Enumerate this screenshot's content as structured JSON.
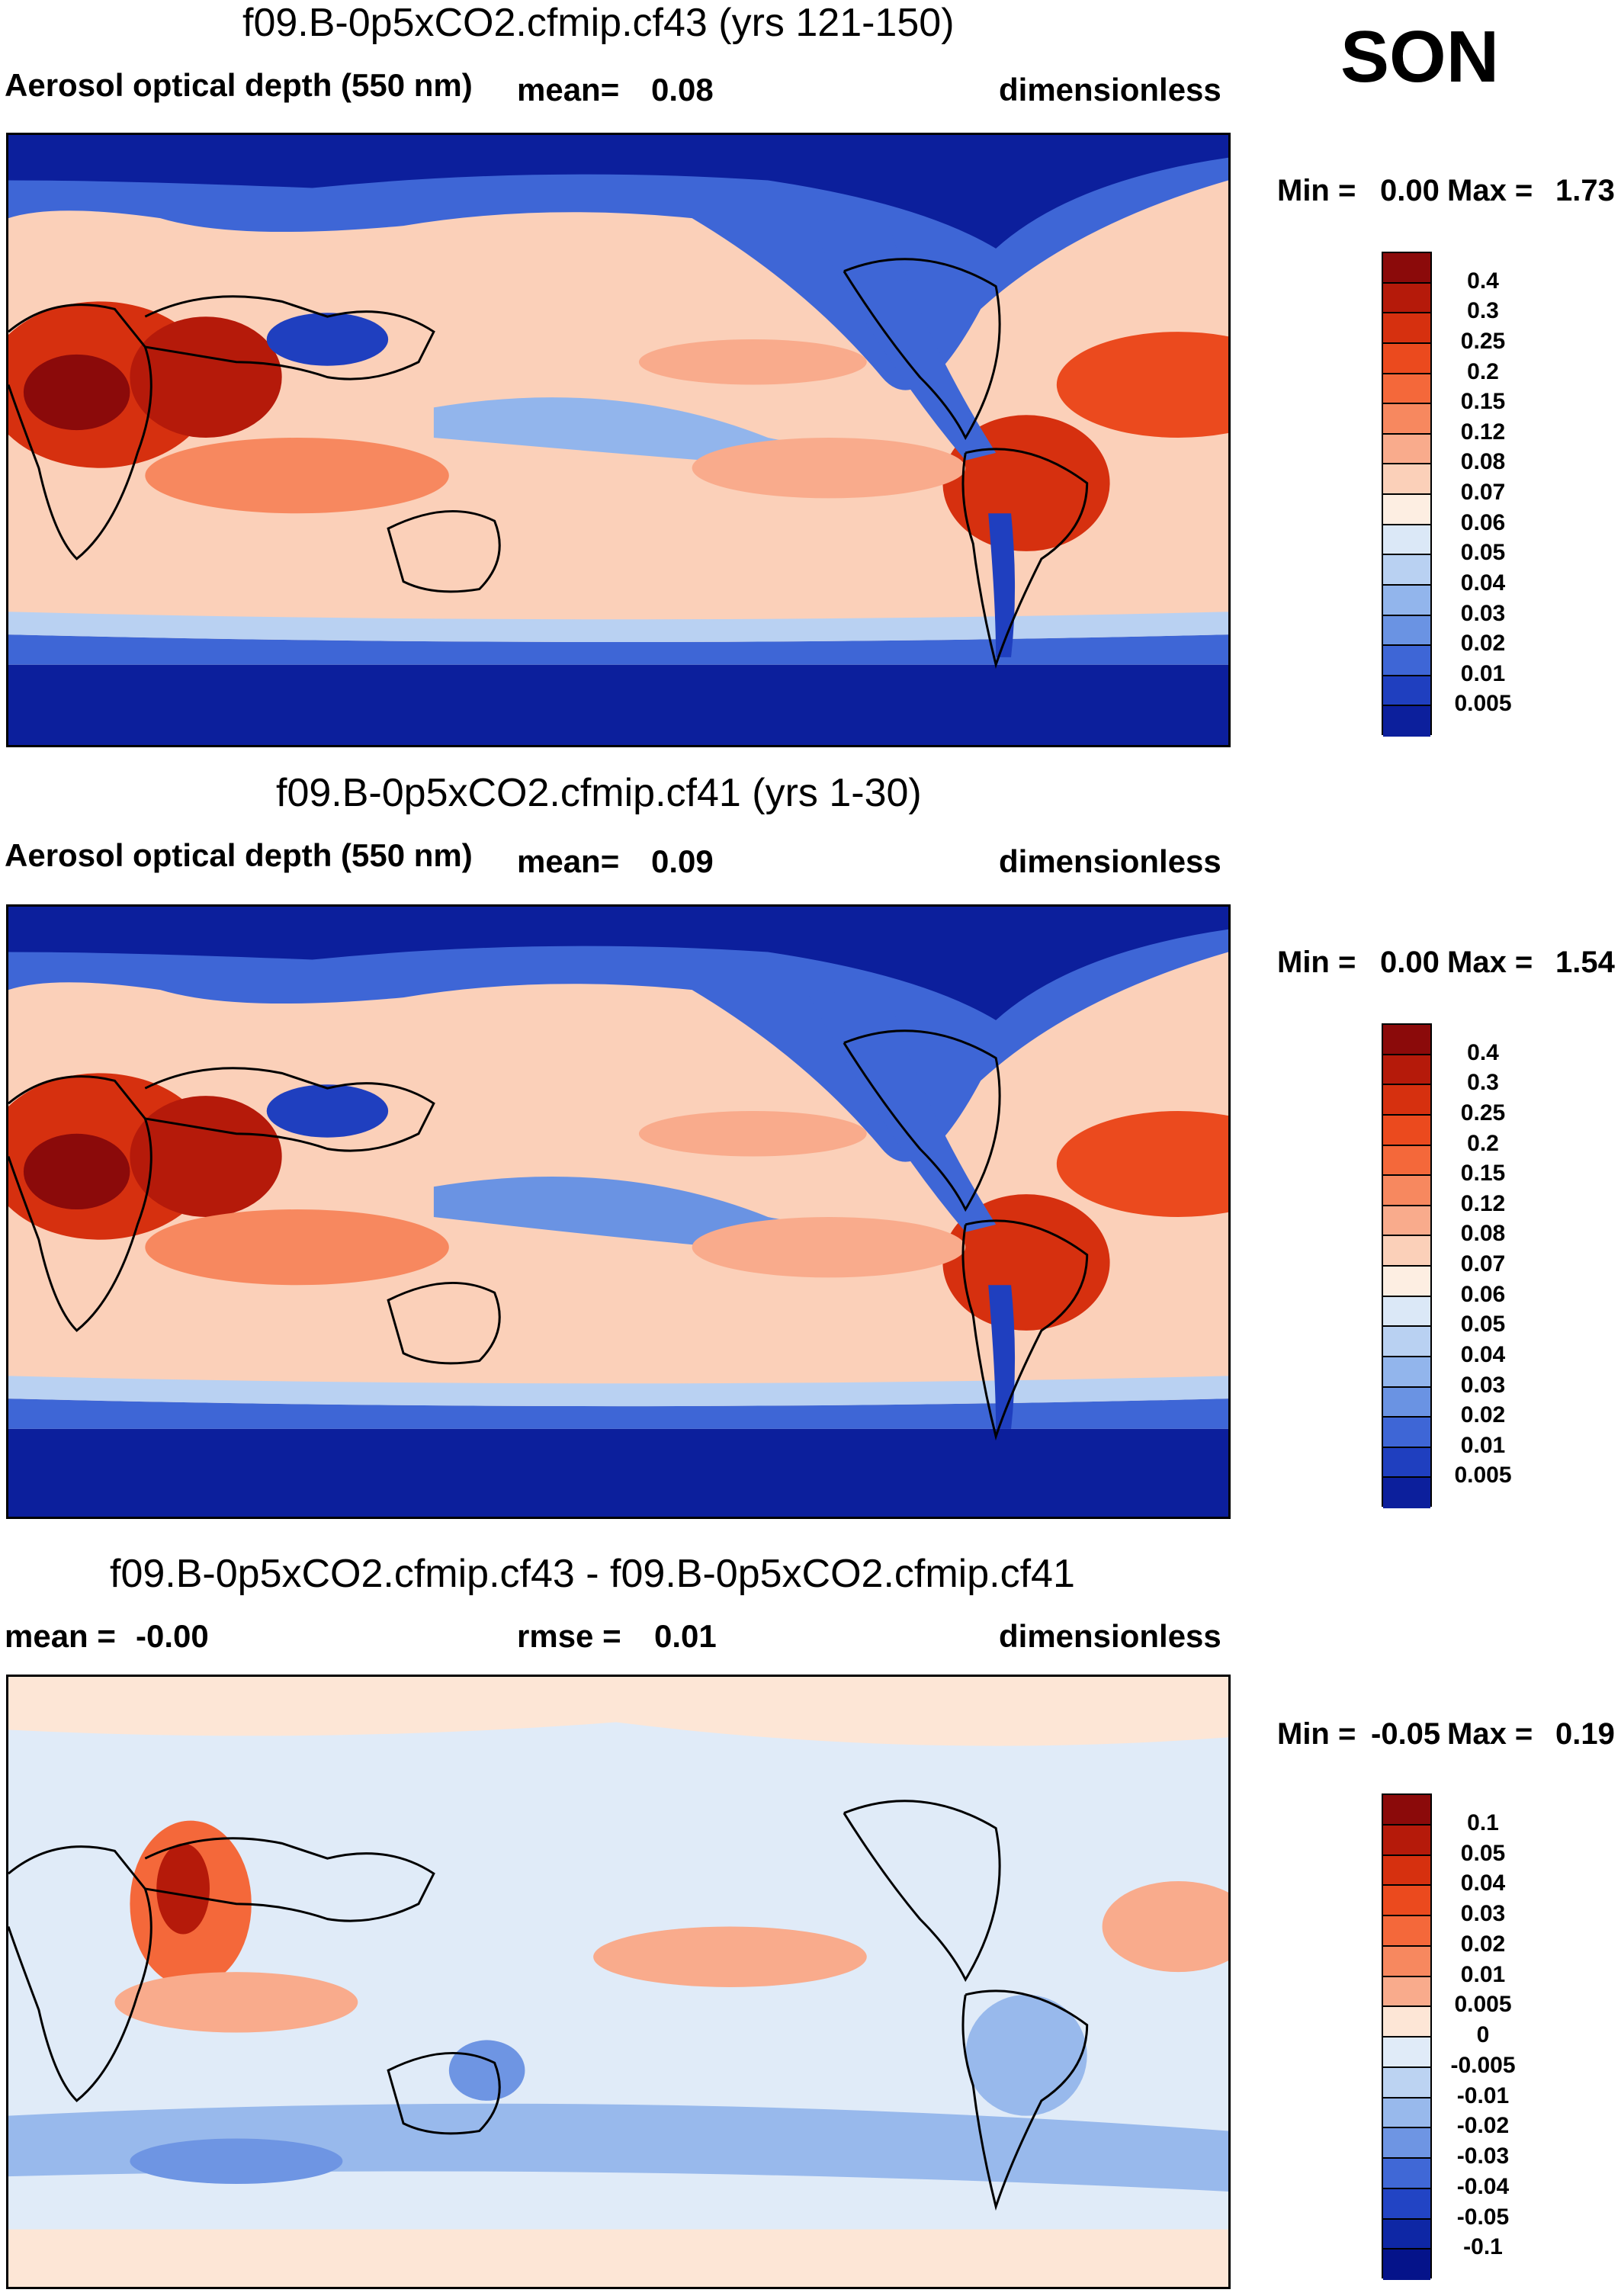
{
  "season": "SON",
  "panels": [
    {
      "title": "f09.B-0p5xCO2.cfmip.cf43 (yrs 121-150)",
      "left_label": "Aerosol optical depth (550 nm)",
      "center_label": "mean=",
      "center_value": "0.08",
      "right_label": "dimensionless",
      "min_label": "Min =",
      "min_value": "0.00",
      "max_label": "Max =",
      "max_value": "1.73"
    },
    {
      "title": "f09.B-0p5xCO2.cfmip.cf41 (yrs 1-30)",
      "left_label": "Aerosol optical depth (550 nm)",
      "center_label": "mean=",
      "center_value": "0.09",
      "right_label": "dimensionless",
      "min_label": "Min =",
      "min_value": "0.00",
      "max_label": "Max =",
      "max_value": "1.54"
    },
    {
      "title": "f09.B-0p5xCO2.cfmip.cf43 - f09.B-0p5xCO2.cfmip.cf41",
      "left_label": "mean =",
      "left_value": "-0.00",
      "center_label": "rmse =",
      "center_value": "0.01",
      "right_label": "dimensionless",
      "min_label": "Min =",
      "min_value": "-0.05",
      "max_label": "Max =",
      "max_value": "0.19"
    }
  ],
  "colorbars": {
    "aod": {
      "labels": [
        "0.4",
        "0.3",
        "0.25",
        "0.2",
        "0.15",
        "0.12",
        "0.08",
        "0.07",
        "0.06",
        "0.05",
        "0.04",
        "0.03",
        "0.02",
        "0.01",
        "0.005"
      ],
      "colors": [
        "#8b0a0a",
        "#b51a0a",
        "#d6300f",
        "#eb4a1e",
        "#f4683a",
        "#f7885f",
        "#f9ab8c",
        "#fbd0b9",
        "#fdeee2",
        "#dbe8f7",
        "#b9d1f2",
        "#92b5ec",
        "#6a93e3",
        "#3e66d6",
        "#1f3fbf",
        "#0c1f9c"
      ]
    },
    "diff": {
      "labels": [
        "0.1",
        "0.05",
        "0.04",
        "0.03",
        "0.02",
        "0.01",
        "0.005",
        "0",
        "-0.005",
        "-0.01",
        "-0.02",
        "-0.03",
        "-0.04",
        "-0.05",
        "-0.1"
      ],
      "colors": [
        "#8b0a0a",
        "#b51a0a",
        "#d6300f",
        "#eb4a1e",
        "#f4683a",
        "#f7885f",
        "#f9ab8c",
        "#fde6d6",
        "#e0ebf8",
        "#bcd3f2",
        "#98b9ec",
        "#6e95e3",
        "#4068d6",
        "#2244c4",
        "#0e27a5",
        "#05138a"
      ]
    }
  }
}
